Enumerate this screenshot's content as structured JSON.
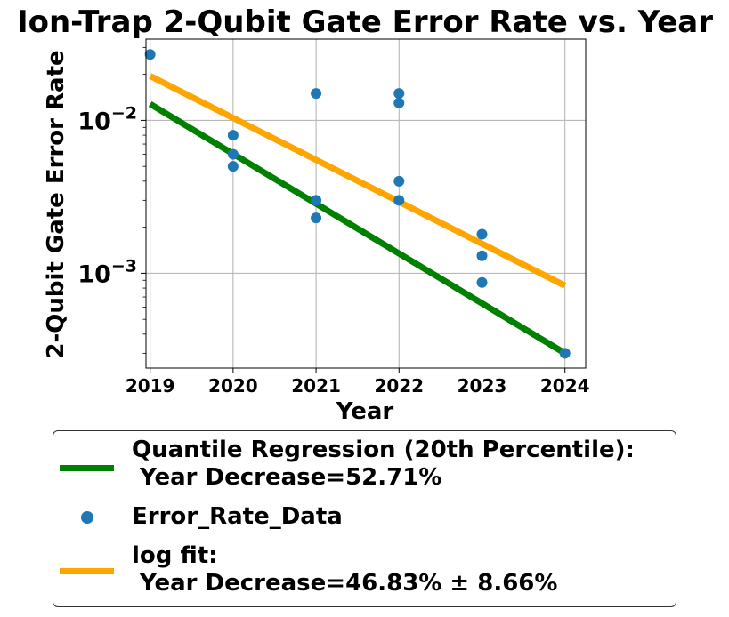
{
  "chart_data": {
    "type": "scatter",
    "title": "Ion-Trap 2-Qubit Gate Error Rate vs. Year",
    "xlabel": "Year",
    "ylabel": "2-Qubit Gate Error Rate",
    "yscale": "log",
    "xlim": [
      2018.95,
      2024.25
    ],
    "ylim": [
      0.00024,
      0.034
    ],
    "grid": true,
    "legend_position": "below",
    "x_ticks": [
      2019,
      2020,
      2021,
      2022,
      2023,
      2024
    ],
    "x_tick_labels": [
      "2019",
      "2020",
      "2021",
      "2022",
      "2023",
      "2024"
    ],
    "y_ticks": [
      0.01,
      0.001
    ],
    "y_tick_labels": [
      {
        "base": "10",
        "exp": "−2"
      },
      {
        "base": "10",
        "exp": "−3"
      }
    ],
    "series": [
      {
        "name": "Error_Rate_Data",
        "kind": "scatter",
        "color": "#1f77b4",
        "points": [
          [
            2019,
            0.027
          ],
          [
            2020,
            0.008
          ],
          [
            2020,
            0.006
          ],
          [
            2020,
            0.005
          ],
          [
            2021,
            0.015
          ],
          [
            2021,
            0.003
          ],
          [
            2021,
            0.0023
          ],
          [
            2022,
            0.015
          ],
          [
            2022,
            0.013
          ],
          [
            2022,
            0.004
          ],
          [
            2022,
            0.003
          ],
          [
            2023,
            0.0018
          ],
          [
            2023,
            0.0013
          ],
          [
            2023,
            0.00087
          ],
          [
            2024,
            0.0003
          ]
        ]
      },
      {
        "name": "Quantile Regression (20th Percentile)",
        "kind": "line",
        "color": "#008000",
        "x": [
          2019,
          2024
        ],
        "y": [
          0.0128,
          0.0003
        ]
      },
      {
        "name": "log fit",
        "kind": "line",
        "color": "#ffa500",
        "x": [
          2019,
          2024
        ],
        "y": [
          0.0195,
          0.00083
        ]
      }
    ],
    "legend": [
      {
        "kind": "line",
        "color": "#008000",
        "label": "Quantile Regression (20th Percentile):\n Year Decrease=52.71%"
      },
      {
        "kind": "marker",
        "color": "#1f77b4",
        "label": "Error_Rate_Data"
      },
      {
        "kind": "line",
        "color": "#ffa500",
        "label": "log fit:\n Year Decrease=46.83% ± 8.66%"
      }
    ]
  }
}
